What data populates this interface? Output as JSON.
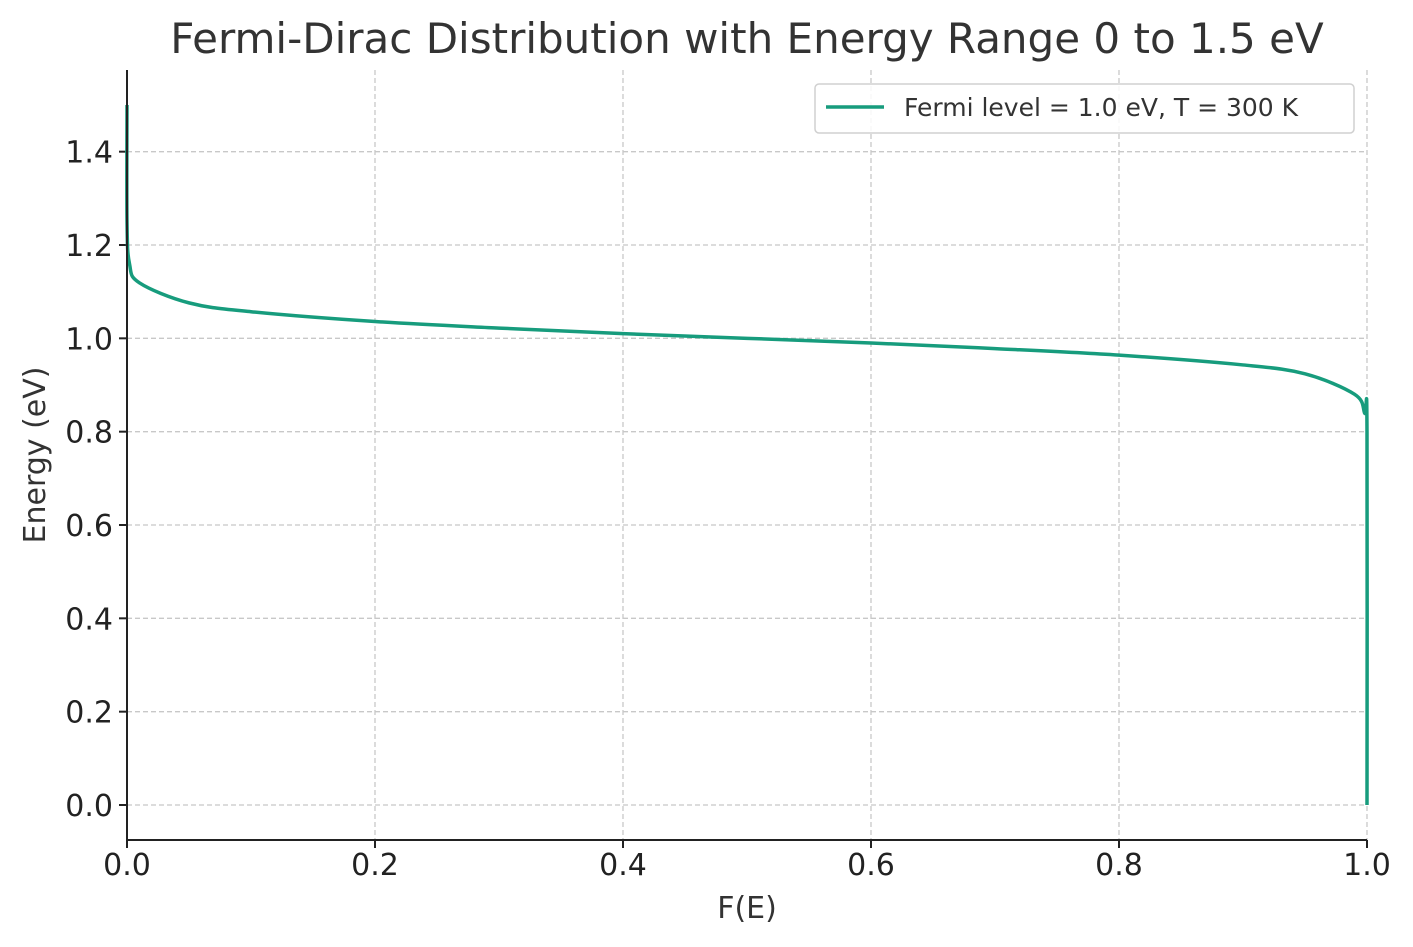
{
  "chart_data": {
    "type": "line",
    "title": "Fermi-Dirac Distribution with Energy Range 0 to 1.5 eV",
    "xlabel": "F(E)",
    "ylabel": "Energy (eV)",
    "xlim": [
      0.0,
      1.0
    ],
    "ylim": [
      -0.075,
      1.575
    ],
    "x_ticks": [
      "0.0",
      "0.2",
      "0.4",
      "0.6",
      "0.8",
      "1.0"
    ],
    "y_ticks": [
      "0.0",
      "0.2",
      "0.4",
      "0.6",
      "0.8",
      "1.0",
      "1.2",
      "1.4"
    ],
    "grid": true,
    "legend_position": "top-right",
    "series": [
      {
        "name": "Fermi level = 1.0 eV, T = 300 K",
        "color": "#179c7d",
        "fermi_level_eV": 1.0,
        "temperature_K": 300,
        "energy_range_eV": [
          0.0,
          1.5
        ],
        "points": [
          {
            "x": 1.0,
            "y": 0.0
          },
          {
            "x": 1.0,
            "y": 0.8
          },
          {
            "x": 0.998,
            "y": 0.84
          },
          {
            "x": 0.99,
            "y": 0.88
          },
          {
            "x": 0.95,
            "y": 0.924
          },
          {
            "x": 0.9,
            "y": 0.943
          },
          {
            "x": 0.8,
            "y": 0.964
          },
          {
            "x": 0.7,
            "y": 0.978
          },
          {
            "x": 0.6,
            "y": 0.99
          },
          {
            "x": 0.5,
            "y": 1.0
          },
          {
            "x": 0.4,
            "y": 1.01
          },
          {
            "x": 0.3,
            "y": 1.022
          },
          {
            "x": 0.2,
            "y": 1.036
          },
          {
            "x": 0.1,
            "y": 1.057
          },
          {
            "x": 0.05,
            "y": 1.076
          },
          {
            "x": 0.01,
            "y": 1.119
          },
          {
            "x": 0.002,
            "y": 1.16
          },
          {
            "x": 0.0,
            "y": 1.25
          },
          {
            "x": 0.0,
            "y": 1.5
          }
        ]
      }
    ]
  }
}
